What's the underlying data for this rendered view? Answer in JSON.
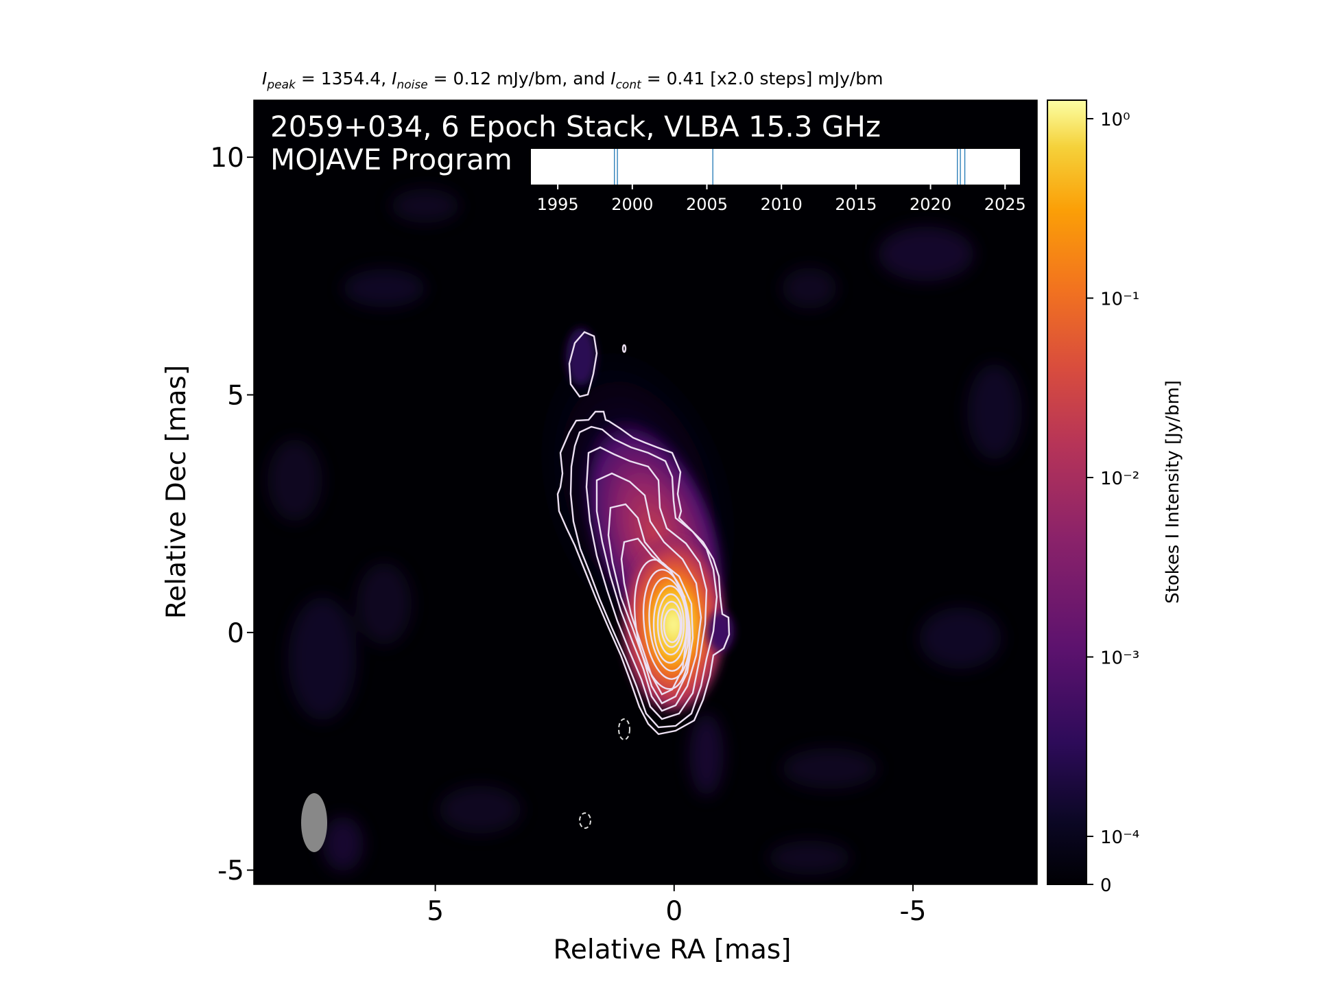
{
  "stats": {
    "peak_sym": "I",
    "peak_sub": "peak",
    "peak_value": " = 1354.4, ",
    "noise_sym": "I",
    "noise_sub": "noise",
    "noise_value": " = 0.12 mJy/bm, and ",
    "cont_sym": "I",
    "cont_sub": "cont",
    "cont_value": " = 0.41 [x2.0 steps] mJy/bm"
  },
  "image": {
    "title_line1": "2059+034, 6 Epoch Stack, VLBA 15.3 GHz",
    "title_line2": "MOJAVE Program",
    "contour_color": "#ffffff",
    "beam_color": "#888888",
    "background_color": "#000004"
  },
  "colorbar": {
    "label": "Stokes I Intensity [Jy/bm]",
    "ticks": [
      {
        "label": "10⁰",
        "value": 1.0
      },
      {
        "label": "10⁻¹",
        "value": 0.1
      },
      {
        "label": "10⁻²",
        "value": 0.01
      },
      {
        "label": "10⁻³",
        "value": 0.001
      },
      {
        "label": "10⁻⁴",
        "value": 0.0001
      },
      {
        "label": "0",
        "value": 0
      }
    ],
    "colormap": "inferno",
    "scale": "log"
  },
  "chart_data": {
    "type": "heatmap",
    "title": "2059+034, 6 Epoch Stack, VLBA 15.3 GHz",
    "subtitle": "MOJAVE Program",
    "xlabel": "Relative RA [mas]",
    "ylabel": "Relative Dec [mas]",
    "xlim": [
      8.8,
      -7.6
    ],
    "ylim": [
      -5.3,
      11.2
    ],
    "x_ticks": [
      5,
      0,
      -5
    ],
    "x_tick_labels": [
      "5",
      "0",
      "-5"
    ],
    "y_ticks": [
      10,
      5,
      0,
      -5
    ],
    "y_tick_labels": [
      "10",
      "5",
      "0",
      "-5"
    ],
    "peak_intensity": 1354.4,
    "noise": "0.12 mJy/bm",
    "lowest_contour": "0.41 mJy/bm",
    "contour_step": 2.0,
    "epoch_timeline": {
      "x_ticks": [
        1995,
        2000,
        2005,
        2010,
        2015,
        2020,
        2025
      ],
      "xlim": [
        1993.2,
        2026
      ],
      "epochs": [
        1998.8,
        1999.0,
        2005.4,
        2021.8,
        2022.0,
        2022.3
      ]
    }
  }
}
